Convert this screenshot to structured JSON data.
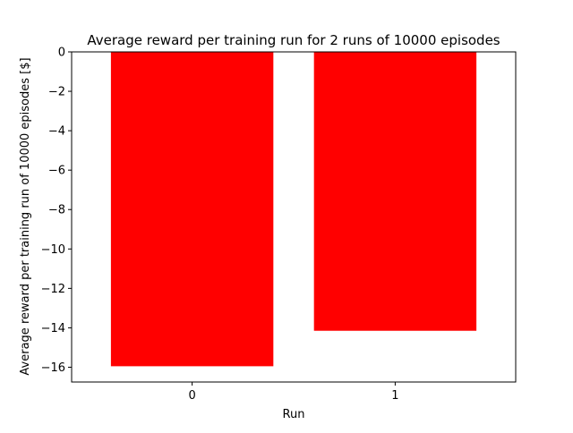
{
  "chart_data": {
    "type": "bar",
    "title": "Average reward per training run for 2 runs of 10000 episodes",
    "xlabel": "Run",
    "ylabel": "Average reward per training run of 10000 episodes [$]",
    "categories": [
      "0",
      "1"
    ],
    "values": [
      -15.95,
      -14.15
    ],
    "ylim": [
      -16.75,
      0
    ],
    "yticks": [
      0,
      -2,
      -4,
      -6,
      -8,
      -10,
      -12,
      -14,
      -16
    ],
    "ytick_labels": [
      "0",
      "−2",
      "−4",
      "−6",
      "−8",
      "−10",
      "−12",
      "−14",
      "−16"
    ],
    "bar_color": "#ff0000",
    "grid": false,
    "legend": "none"
  }
}
